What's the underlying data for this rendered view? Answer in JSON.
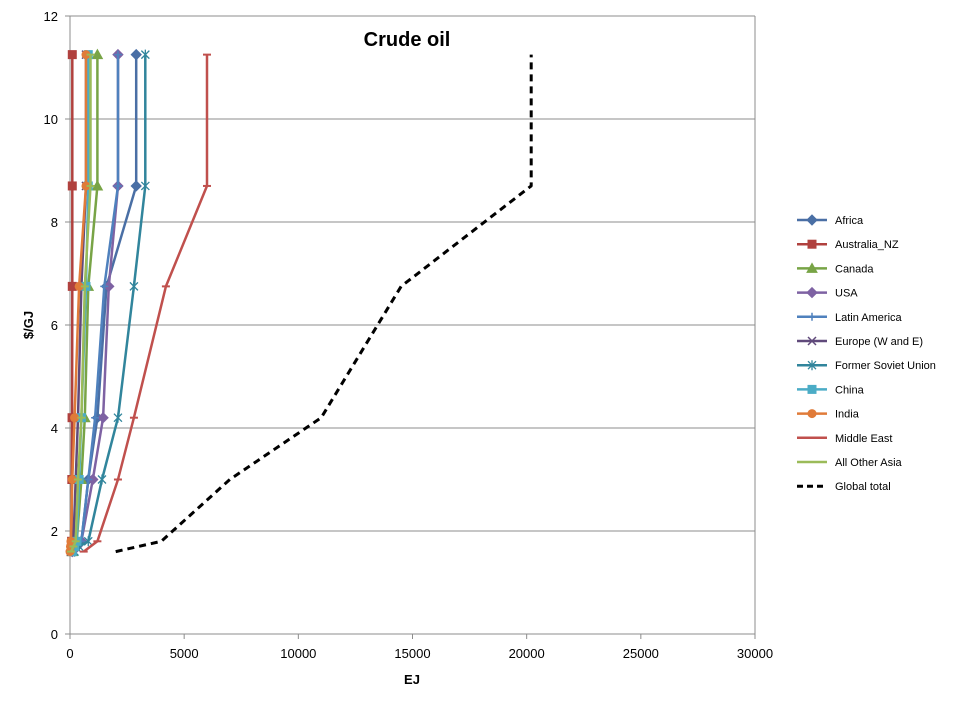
{
  "chart_data": {
    "type": "line",
    "title": "Crude oil",
    "xlabel": "EJ",
    "ylabel": "$/GJ",
    "xlim": [
      0,
      30000
    ],
    "ylim": [
      0,
      12
    ],
    "xticks": [
      0,
      5000,
      10000,
      15000,
      20000,
      25000,
      30000
    ],
    "yticks": [
      0,
      2,
      4,
      6,
      8,
      10,
      12
    ],
    "grid": "horizontal",
    "legend_position": "right",
    "series": [
      {
        "name": "Africa",
        "color": "#4a6fa5",
        "marker": "diamond",
        "dash": "solid",
        "points": [
          [
            100,
            1.6
          ],
          [
            300,
            1.7
          ],
          [
            500,
            1.8
          ],
          [
            800,
            3.0
          ],
          [
            1200,
            4.2
          ],
          [
            1600,
            6.75
          ],
          [
            2900,
            8.7
          ],
          [
            2900,
            11.25
          ]
        ]
      },
      {
        "name": "Australia_NZ",
        "color": "#b0413e",
        "marker": "square",
        "dash": "solid",
        "points": [
          [
            50,
            1.6
          ],
          [
            60,
            1.7
          ],
          [
            70,
            1.8
          ],
          [
            80,
            3.0
          ],
          [
            90,
            4.2
          ],
          [
            100,
            6.75
          ],
          [
            100,
            8.7
          ],
          [
            100,
            11.25
          ]
        ]
      },
      {
        "name": "Canada",
        "color": "#78a446",
        "marker": "triangle",
        "dash": "solid",
        "points": [
          [
            100,
            1.6
          ],
          [
            200,
            1.7
          ],
          [
            300,
            1.8
          ],
          [
            500,
            3.0
          ],
          [
            650,
            4.2
          ],
          [
            800,
            6.75
          ],
          [
            1200,
            8.7
          ],
          [
            1200,
            11.25
          ]
        ]
      },
      {
        "name": "USA",
        "color": "#7e62a3",
        "marker": "diamond",
        "dash": "solid",
        "points": [
          [
            100,
            1.6
          ],
          [
            300,
            1.7
          ],
          [
            500,
            1.8
          ],
          [
            1000,
            3.0
          ],
          [
            1450,
            4.2
          ],
          [
            1700,
            6.75
          ],
          [
            2100,
            8.7
          ],
          [
            2100,
            11.25
          ]
        ]
      },
      {
        "name": "Latin America",
        "color": "#4f81bd",
        "marker": "plus",
        "dash": "solid",
        "points": [
          [
            100,
            1.6
          ],
          [
            300,
            1.7
          ],
          [
            500,
            1.8
          ],
          [
            800,
            3.0
          ],
          [
            1100,
            4.2
          ],
          [
            1500,
            6.75
          ],
          [
            2100,
            8.7
          ],
          [
            2100,
            11.25
          ]
        ]
      },
      {
        "name": "Europe (W and E)",
        "color": "#604a7b",
        "marker": "x",
        "dash": "solid",
        "points": [
          [
            50,
            1.6
          ],
          [
            100,
            1.7
          ],
          [
            150,
            1.8
          ],
          [
            250,
            3.0
          ],
          [
            350,
            4.2
          ],
          [
            500,
            6.75
          ],
          [
            700,
            8.7
          ],
          [
            700,
            11.25
          ]
        ]
      },
      {
        "name": "Former Soviet Union",
        "color": "#31859c",
        "marker": "star",
        "dash": "solid",
        "points": [
          [
            200,
            1.6
          ],
          [
            400,
            1.7
          ],
          [
            800,
            1.8
          ],
          [
            1400,
            3.0
          ],
          [
            2100,
            4.2
          ],
          [
            2800,
            6.75
          ],
          [
            3300,
            8.7
          ],
          [
            3300,
            11.25
          ]
        ]
      },
      {
        "name": "China",
        "color": "#4bacc6",
        "marker": "square",
        "dash": "solid",
        "points": [
          [
            100,
            1.6
          ],
          [
            200,
            1.7
          ],
          [
            300,
            1.8
          ],
          [
            400,
            3.0
          ],
          [
            500,
            4.2
          ],
          [
            700,
            6.75
          ],
          [
            800,
            8.7
          ],
          [
            800,
            11.25
          ]
        ]
      },
      {
        "name": "India",
        "color": "#e07b39",
        "marker": "circle",
        "dash": "solid",
        "points": [
          [
            0,
            1.6
          ],
          [
            20,
            1.7
          ],
          [
            40,
            1.8
          ],
          [
            100,
            3.0
          ],
          [
            200,
            4.2
          ],
          [
            400,
            6.75
          ],
          [
            700,
            8.7
          ],
          [
            700,
            11.25
          ]
        ]
      },
      {
        "name": "Middle East",
        "color": "#c0504d",
        "marker": "dash",
        "dash": "solid",
        "points": [
          [
            600,
            1.6
          ],
          [
            1200,
            1.8
          ],
          [
            2100,
            3.0
          ],
          [
            2800,
            4.2
          ],
          [
            4200,
            6.75
          ],
          [
            6000,
            8.7
          ],
          [
            6000,
            11.25
          ]
        ]
      },
      {
        "name": "All Other Asia",
        "color": "#9bbb59",
        "marker": "dash",
        "dash": "solid",
        "points": [
          [
            50,
            1.6
          ],
          [
            150,
            1.7
          ],
          [
            250,
            1.8
          ],
          [
            350,
            3.0
          ],
          [
            500,
            4.2
          ],
          [
            650,
            6.75
          ],
          [
            900,
            8.7
          ],
          [
            900,
            11.25
          ]
        ]
      },
      {
        "name": "Global total",
        "color": "#000000",
        "marker": "none",
        "dash": "dashed",
        "points": [
          [
            2000,
            1.6
          ],
          [
            4000,
            1.8
          ],
          [
            7000,
            3.0
          ],
          [
            11000,
            4.2
          ],
          [
            14500,
            6.75
          ],
          [
            20200,
            8.7
          ],
          [
            20200,
            11.25
          ]
        ]
      }
    ]
  }
}
